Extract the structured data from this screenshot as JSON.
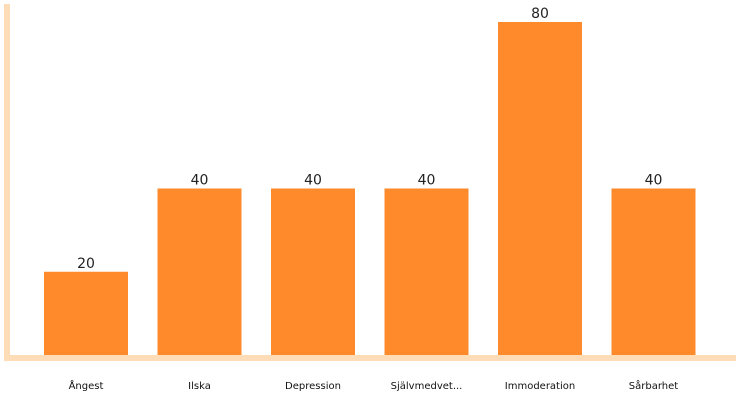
{
  "chart_data": {
    "type": "bar",
    "categories": [
      "Ångest",
      "Ilska",
      "Depression",
      "Självmedvet...",
      "Immoderation",
      "Sårbarhet"
    ],
    "values": [
      20,
      40,
      40,
      40,
      80,
      40
    ],
    "ylim": [
      0,
      80
    ],
    "grid": false,
    "legend": "none",
    "colors": {
      "bar": "#ff8a2b",
      "axis": "#ffdcb8"
    }
  }
}
